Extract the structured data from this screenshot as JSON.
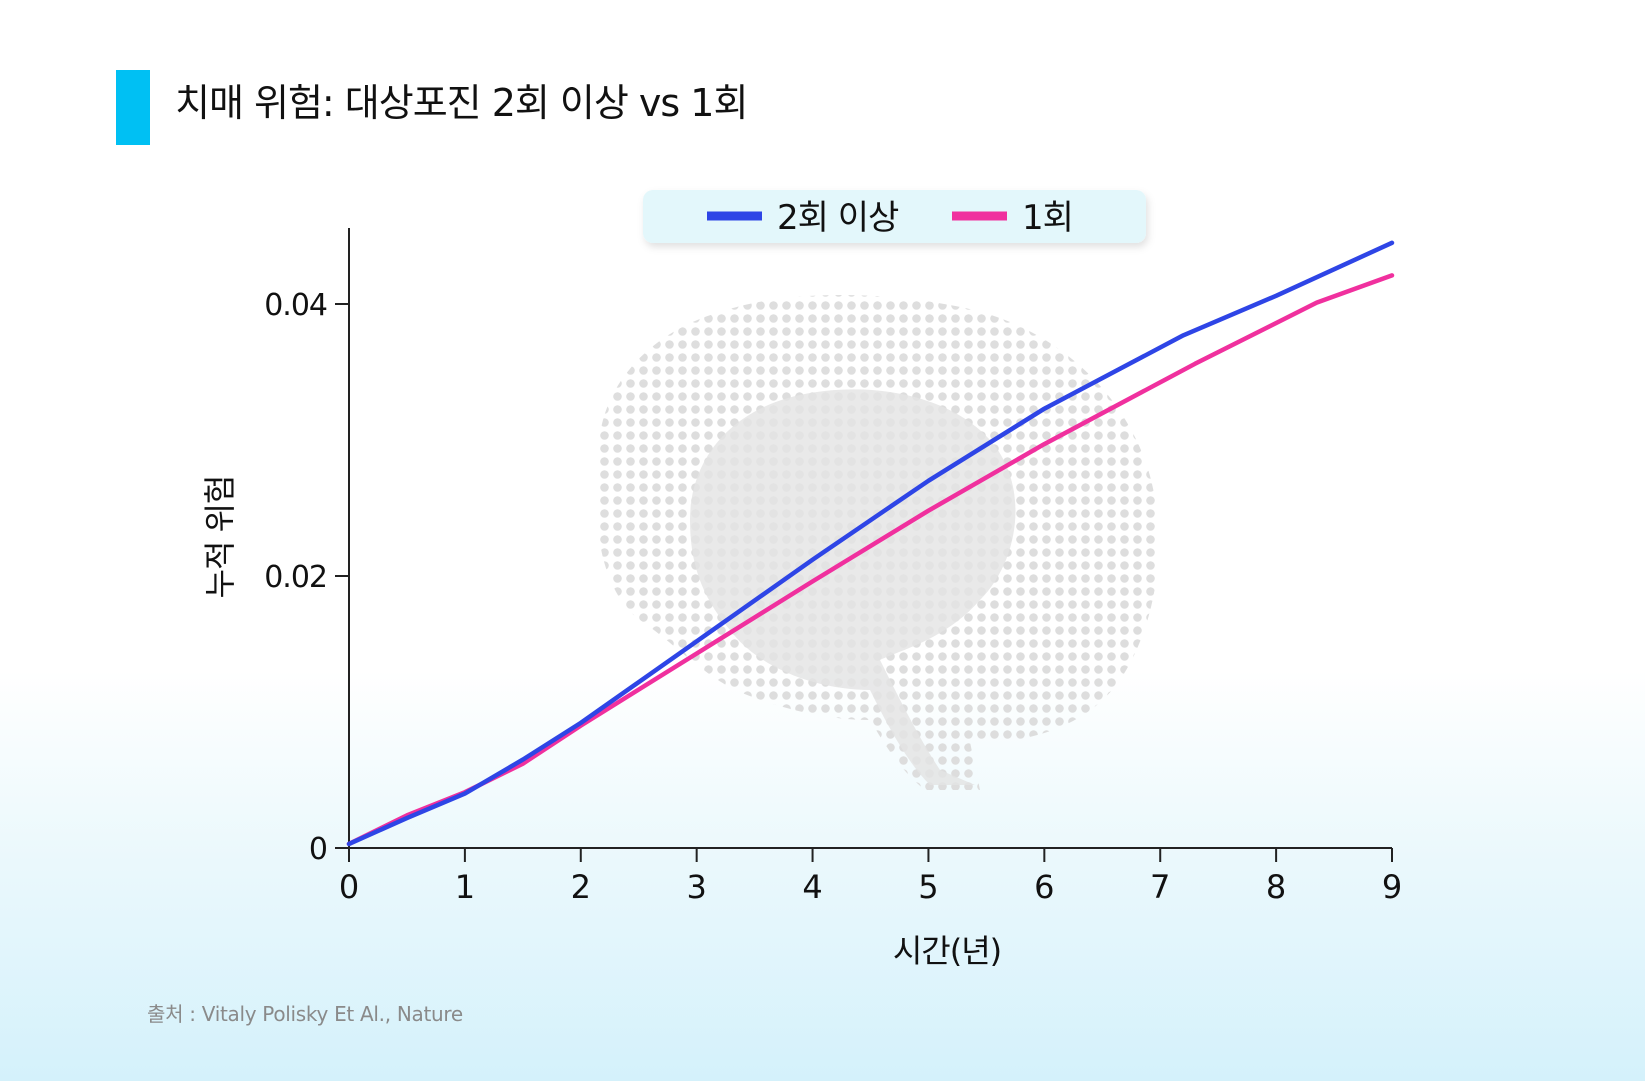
{
  "title": "치매 위험: 대상포진 2회 이상 vs 1회",
  "source": "출처 : Vitaly Polisky Et Al., Nature",
  "colors": {
    "accent": "#00c0f3",
    "series_2plus": "#2e45e6",
    "series_1": "#f0309e",
    "legend_bg": "#e3f7fb",
    "brain": "#dedede"
  },
  "chart_data": {
    "type": "line",
    "title": "치매 위험: 대상포진 2회 이상 vs 1회",
    "xlabel": "시간(년)",
    "ylabel": "누적 위험",
    "xlim": [
      0,
      9
    ],
    "ylim": [
      0,
      0.045
    ],
    "xticks": [
      0,
      1,
      2,
      3,
      4,
      5,
      6,
      7,
      8,
      9
    ],
    "xtick_labels": [
      "0",
      "1",
      "2",
      "3",
      "4",
      "5",
      "6",
      "7",
      "8",
      "9"
    ],
    "yticks": [
      0,
      0.02,
      0.04
    ],
    "ytick_labels": [
      "0",
      "0.02",
      "0.04"
    ],
    "legend_position": "top-center",
    "series": [
      {
        "name": "2회 이상",
        "color": "#2e45e6",
        "x": [
          0,
          0.5,
          1,
          1.5,
          2,
          3,
          4,
          5,
          6,
          7.2,
          8,
          9
        ],
        "y": [
          0.0003,
          0.0022,
          0.004,
          0.0065,
          0.0092,
          0.0152,
          0.0212,
          0.027,
          0.0323,
          0.0377,
          0.0406,
          0.0445
        ]
      },
      {
        "name": "1회",
        "color": "#f0309e",
        "x": [
          0,
          0.5,
          1,
          1.5,
          2,
          3,
          4,
          5,
          6,
          7.3,
          8.35,
          9
        ],
        "y": [
          0.0003,
          0.0024,
          0.0041,
          0.0062,
          0.009,
          0.0143,
          0.0196,
          0.0248,
          0.0297,
          0.0356,
          0.0401,
          0.0421
        ]
      }
    ]
  }
}
